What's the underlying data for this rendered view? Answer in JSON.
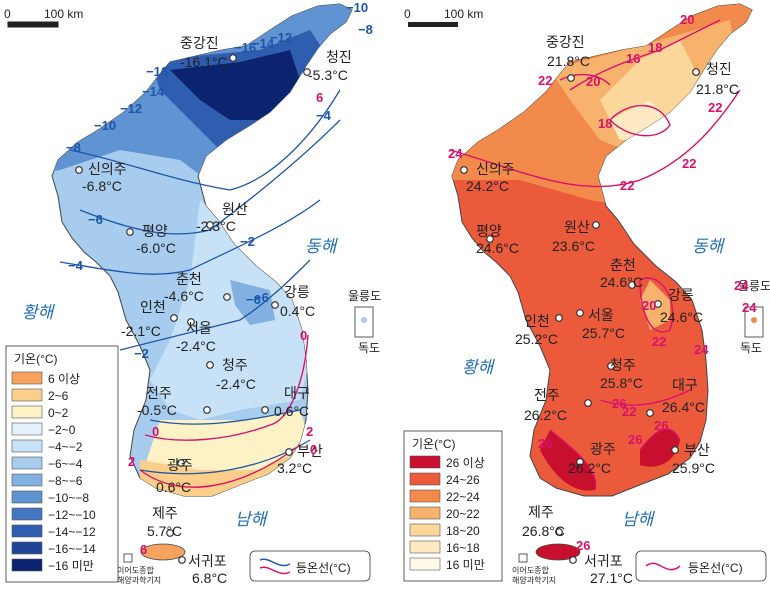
{
  "scale": {
    "zero": "0",
    "distance": "100 km"
  },
  "winter": {
    "seas": {
      "east": "동해",
      "west": "황해",
      "south": "남해"
    },
    "islands": {
      "ulleung": "울릉도",
      "dokdo": "독도",
      "ieodo": "이어도종합\n해양과학기지"
    },
    "cities": [
      {
        "name": "중강진",
        "temp": "-16.1°C"
      },
      {
        "name": "청진",
        "temp": "-5.3°C"
      },
      {
        "name": "신의주",
        "temp": "-6.8°C"
      },
      {
        "name": "원산",
        "temp": "-2.3°C"
      },
      {
        "name": "평양",
        "temp": "-6.0°C"
      },
      {
        "name": "춘천",
        "temp": "-4.6°C"
      },
      {
        "name": "강릉",
        "temp": "0.4°C"
      },
      {
        "name": "인천",
        "temp": "-2.1°C"
      },
      {
        "name": "서울",
        "temp": "-2.4°C"
      },
      {
        "name": "청주",
        "temp": "-2.4°C"
      },
      {
        "name": "전주",
        "temp": "-0.5°C"
      },
      {
        "name": "대구",
        "temp": "0.6°C"
      },
      {
        "name": "부산",
        "temp": "3.2°C"
      },
      {
        "name": "광주",
        "temp": "0.6°C"
      },
      {
        "name": "제주",
        "temp": "5.7°C"
      },
      {
        "name": "서귀포",
        "temp": "6.8°C"
      }
    ],
    "isotherm_labels": [
      "-10",
      "-8",
      "-16",
      "-14",
      "-12",
      "-16",
      "-14",
      "-12",
      "-10",
      "-8",
      "-6",
      "-4",
      "-2",
      "-6",
      "0",
      "0",
      "2",
      "2",
      "6",
      "0",
      "6",
      "-6",
      "-4",
      "-2"
    ],
    "legend": {
      "title": "기온(°C)",
      "items": [
        {
          "label": "6 이상",
          "color": "#f5a35f"
        },
        {
          "label": "2~6",
          "color": "#fbcf8a"
        },
        {
          "label": "0~2",
          "color": "#fdf1c6"
        },
        {
          "label": "-2~0",
          "color": "#e4f1fb"
        },
        {
          "label": "-4~-2",
          "color": "#c7e2f6"
        },
        {
          "label": "-6~-4",
          "color": "#a7ccee"
        },
        {
          "label": "-8~-6",
          "color": "#82b0e1"
        },
        {
          "label": "-10~-8",
          "color": "#6093d2"
        },
        {
          "label": "-12~-10",
          "color": "#4576c1"
        },
        {
          "label": "-14~-12",
          "color": "#2f5eb0"
        },
        {
          "label": "-16~-14",
          "color": "#1f4596"
        },
        {
          "label": "-16 미만",
          "color": "#0c2470"
        }
      ]
    },
    "isoline_legend": "등온선(°C)"
  },
  "summer": {
    "seas": {
      "east": "동해",
      "west": "황해",
      "south": "남해"
    },
    "islands": {
      "ulleung": "울릉도",
      "dokdo": "독도",
      "ieodo": "이어도종합\n해양과학기지"
    },
    "cities": [
      {
        "name": "중강진",
        "temp": "21.8°C"
      },
      {
        "name": "청진",
        "temp": "21.8°C"
      },
      {
        "name": "신의주",
        "temp": "24.2°C"
      },
      {
        "name": "원산",
        "temp": "23.6°C"
      },
      {
        "name": "평양",
        "temp": "24.6°C"
      },
      {
        "name": "춘천",
        "temp": "24.6°C"
      },
      {
        "name": "강릉",
        "temp": "24.6°C"
      },
      {
        "name": "인천",
        "temp": "25.2°C"
      },
      {
        "name": "서울",
        "temp": "25.7°C"
      },
      {
        "name": "청주",
        "temp": "25.8°C"
      },
      {
        "name": "전주",
        "temp": "26.2°C"
      },
      {
        "name": "대구",
        "temp": "26.4°C"
      },
      {
        "name": "부산",
        "temp": "25.9°C"
      },
      {
        "name": "광주",
        "temp": "26.2°C"
      },
      {
        "name": "제주",
        "temp": "26.8°C"
      },
      {
        "name": "서귀포",
        "temp": "27.1°C"
      }
    ],
    "isotherm_labels": [
      "20",
      "16",
      "18",
      "22",
      "20",
      "18",
      "22",
      "22",
      "22",
      "24",
      "24",
      "20",
      "22",
      "24",
      "26",
      "22",
      "26",
      "26",
      "26",
      "26",
      "24"
    ],
    "legend": {
      "title": "기온(°C)",
      "items": [
        {
          "label": "26 이상",
          "color": "#c8102e"
        },
        {
          "label": "24~26",
          "color": "#ec5a3c"
        },
        {
          "label": "22~24",
          "color": "#f28a4c"
        },
        {
          "label": "20~22",
          "color": "#f7b26e"
        },
        {
          "label": "18~20",
          "color": "#fbd79c"
        },
        {
          "label": "16~18",
          "color": "#fdeac3"
        },
        {
          "label": "16 미만",
          "color": "#fffaea"
        }
      ]
    },
    "isoline_legend": "등온선(°C)"
  }
}
